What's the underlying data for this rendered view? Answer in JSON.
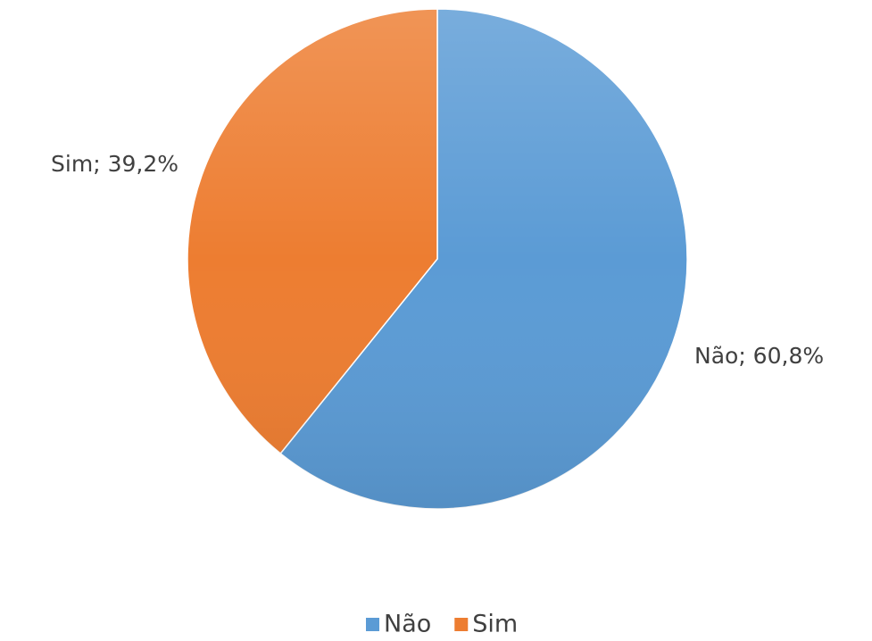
{
  "chart_data": {
    "type": "pie",
    "categories": [
      "Não",
      "Sim"
    ],
    "values": [
      60.8,
      39.2
    ],
    "value_labels": [
      "Não; 60,8%",
      "Sim; 39,2%"
    ],
    "colors": [
      "#5b9bd5",
      "#ed7d31"
    ],
    "legend": "bottom"
  }
}
